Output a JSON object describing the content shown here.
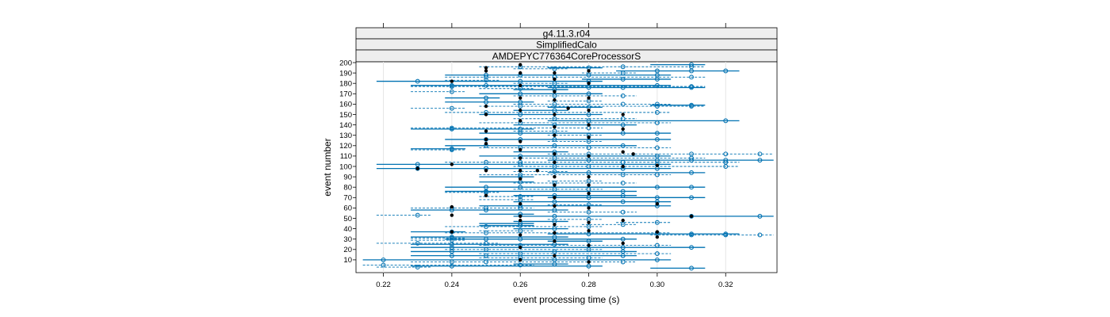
{
  "strips": [
    "g4.11.3.r04",
    "SimplifiedCalo",
    "AMDEPYC776364CoreProcessorS"
  ],
  "chart_data": {
    "type": "scatter",
    "title": "",
    "xlabel": "event processing time (s)",
    "ylabel": "event number",
    "xlim": [
      0.212,
      0.335
    ],
    "ylim": [
      0,
      200
    ],
    "x_ticks": [
      0.22,
      0.24,
      0.26,
      0.28,
      0.3,
      0.32
    ],
    "x_tick_labels": [
      "0.22",
      "0.24",
      "0.26",
      "0.28",
      "0.30",
      "0.32"
    ],
    "y_ticks": [
      10,
      20,
      30,
      40,
      50,
      60,
      70,
      80,
      90,
      100,
      110,
      120,
      130,
      140,
      150,
      160,
      170,
      180,
      190,
      200
    ],
    "y_tick_labels": [
      "10",
      "20",
      "30",
      "40",
      "50",
      "60",
      "70",
      "80",
      "90",
      "100",
      "110",
      "120",
      "130",
      "140",
      "150",
      "160",
      "170",
      "180",
      "190",
      "200"
    ],
    "grid": "vertical",
    "colors": {
      "line": "#0072b2",
      "median": "#000000",
      "grid": "#e6e6e6"
    },
    "series": [
      {
        "name": "",
        "marker": "open-circle",
        "points": [
          [
            0.22,
            10
          ],
          [
            0.22,
            5
          ],
          [
            0.23,
            3
          ],
          [
            0.23,
            26
          ],
          [
            0.23,
            53
          ],
          [
            0.23,
            102
          ],
          [
            0.23,
            98
          ],
          [
            0.23,
            182
          ],
          [
            0.24,
            4
          ],
          [
            0.24,
            8
          ],
          [
            0.24,
            14
          ],
          [
            0.24,
            18
          ],
          [
            0.24,
            22
          ],
          [
            0.24,
            25
          ],
          [
            0.24,
            29
          ],
          [
            0.24,
            31
          ],
          [
            0.24,
            32
          ],
          [
            0.24,
            37
          ],
          [
            0.24,
            58
          ],
          [
            0.24,
            60
          ],
          [
            0.24,
            116
          ],
          [
            0.24,
            117
          ],
          [
            0.24,
            136
          ],
          [
            0.24,
            137
          ],
          [
            0.24,
            156
          ],
          [
            0.24,
            172
          ],
          [
            0.24,
            177
          ],
          [
            0.24,
            178
          ],
          [
            0.25,
            8
          ],
          [
            0.25,
            14
          ],
          [
            0.25,
            20
          ],
          [
            0.25,
            26
          ],
          [
            0.25,
            30
          ],
          [
            0.25,
            36
          ],
          [
            0.25,
            42
          ],
          [
            0.25,
            58
          ],
          [
            0.25,
            60
          ],
          [
            0.25,
            75
          ],
          [
            0.25,
            76
          ],
          [
            0.25,
            80
          ],
          [
            0.25,
            98
          ],
          [
            0.25,
            104
          ],
          [
            0.25,
            120
          ],
          [
            0.25,
            126
          ],
          [
            0.25,
            152
          ],
          [
            0.25,
            162
          ],
          [
            0.25,
            166
          ],
          [
            0.25,
            178
          ],
          [
            0.25,
            183
          ],
          [
            0.25,
            186
          ],
          [
            0.25,
            188
          ],
          [
            0.26,
            5
          ],
          [
            0.26,
            12
          ],
          [
            0.26,
            16
          ],
          [
            0.26,
            24
          ],
          [
            0.26,
            30
          ],
          [
            0.26,
            38
          ],
          [
            0.26,
            43
          ],
          [
            0.26,
            45
          ],
          [
            0.26,
            54
          ],
          [
            0.26,
            60
          ],
          [
            0.26,
            62
          ],
          [
            0.26,
            68
          ],
          [
            0.26,
            71
          ],
          [
            0.26,
            80
          ],
          [
            0.26,
            85
          ],
          [
            0.26,
            90
          ],
          [
            0.26,
            92
          ],
          [
            0.26,
            102
          ],
          [
            0.26,
            104
          ],
          [
            0.26,
            110
          ],
          [
            0.26,
            118
          ],
          [
            0.26,
            126
          ],
          [
            0.26,
            132
          ],
          [
            0.26,
            136
          ],
          [
            0.26,
            142
          ],
          [
            0.26,
            150
          ],
          [
            0.26,
            158
          ],
          [
            0.26,
            162
          ],
          [
            0.26,
            170
          ],
          [
            0.26,
            175
          ],
          [
            0.26,
            182
          ],
          [
            0.26,
            188
          ],
          [
            0.26,
            196
          ],
          [
            0.27,
            6
          ],
          [
            0.27,
            10
          ],
          [
            0.27,
            18
          ],
          [
            0.27,
            25
          ],
          [
            0.27,
            32
          ],
          [
            0.27,
            40
          ],
          [
            0.27,
            47
          ],
          [
            0.27,
            52
          ],
          [
            0.27,
            58
          ],
          [
            0.27,
            66
          ],
          [
            0.27,
            72
          ],
          [
            0.27,
            78
          ],
          [
            0.27,
            84
          ],
          [
            0.27,
            95
          ],
          [
            0.27,
            100
          ],
          [
            0.27,
            108
          ],
          [
            0.27,
            114
          ],
          [
            0.27,
            120
          ],
          [
            0.27,
            126
          ],
          [
            0.27,
            134
          ],
          [
            0.27,
            140
          ],
          [
            0.27,
            146
          ],
          [
            0.27,
            154
          ],
          [
            0.27,
            160
          ],
          [
            0.27,
            168
          ],
          [
            0.27,
            174
          ],
          [
            0.27,
            180
          ],
          [
            0.27,
            186
          ],
          [
            0.27,
            194
          ],
          [
            0.28,
            4
          ],
          [
            0.28,
            12
          ],
          [
            0.28,
            20
          ],
          [
            0.28,
            28
          ],
          [
            0.28,
            35
          ],
          [
            0.28,
            42
          ],
          [
            0.28,
            49
          ],
          [
            0.28,
            56
          ],
          [
            0.28,
            63
          ],
          [
            0.28,
            70
          ],
          [
            0.28,
            78
          ],
          [
            0.28,
            86
          ],
          [
            0.28,
            94
          ],
          [
            0.28,
            100
          ],
          [
            0.28,
            106
          ],
          [
            0.28,
            112
          ],
          [
            0.28,
            118
          ],
          [
            0.28,
            124
          ],
          [
            0.28,
            130
          ],
          [
            0.28,
            137
          ],
          [
            0.28,
            144
          ],
          [
            0.28,
            150
          ],
          [
            0.28,
            157
          ],
          [
            0.28,
            163
          ],
          [
            0.28,
            170
          ],
          [
            0.28,
            176
          ],
          [
            0.28,
            182
          ],
          [
            0.28,
            188
          ],
          [
            0.28,
            195
          ],
          [
            0.29,
            8
          ],
          [
            0.29,
            14
          ],
          [
            0.29,
            18
          ],
          [
            0.29,
            22
          ],
          [
            0.29,
            30
          ],
          [
            0.29,
            44
          ],
          [
            0.29,
            56
          ],
          [
            0.29,
            66
          ],
          [
            0.29,
            72
          ],
          [
            0.29,
            76
          ],
          [
            0.29,
            84
          ],
          [
            0.29,
            92
          ],
          [
            0.29,
            98
          ],
          [
            0.29,
            104
          ],
          [
            0.29,
            120
          ],
          [
            0.29,
            132
          ],
          [
            0.29,
            140
          ],
          [
            0.29,
            146
          ],
          [
            0.29,
            160
          ],
          [
            0.29,
            168
          ],
          [
            0.29,
            176
          ],
          [
            0.29,
            184
          ],
          [
            0.29,
            190
          ],
          [
            0.29,
            196
          ],
          [
            0.3,
            10
          ],
          [
            0.3,
            16
          ],
          [
            0.3,
            24
          ],
          [
            0.3,
            36
          ],
          [
            0.3,
            46
          ],
          [
            0.3,
            62
          ],
          [
            0.3,
            66
          ],
          [
            0.3,
            70
          ],
          [
            0.3,
            80
          ],
          [
            0.3,
            92
          ],
          [
            0.3,
            98
          ],
          [
            0.3,
            102
          ],
          [
            0.3,
            106
          ],
          [
            0.3,
            110
          ],
          [
            0.3,
            118
          ],
          [
            0.3,
            126
          ],
          [
            0.3,
            132
          ],
          [
            0.3,
            142
          ],
          [
            0.3,
            152
          ],
          [
            0.3,
            158
          ],
          [
            0.3,
            160
          ],
          [
            0.3,
            178
          ],
          [
            0.3,
            184
          ],
          [
            0.3,
            188
          ],
          [
            0.3,
            192
          ],
          [
            0.31,
            2
          ],
          [
            0.31,
            22
          ],
          [
            0.31,
            34
          ],
          [
            0.31,
            35
          ],
          [
            0.31,
            52
          ],
          [
            0.31,
            70
          ],
          [
            0.31,
            80
          ],
          [
            0.31,
            94
          ],
          [
            0.31,
            106
          ],
          [
            0.31,
            108
          ],
          [
            0.31,
            112
          ],
          [
            0.31,
            158
          ],
          [
            0.31,
            159
          ],
          [
            0.31,
            176
          ],
          [
            0.31,
            177
          ],
          [
            0.31,
            186
          ],
          [
            0.31,
            192
          ],
          [
            0.31,
            196
          ],
          [
            0.31,
            198
          ],
          [
            0.32,
            34
          ],
          [
            0.32,
            35
          ],
          [
            0.32,
            100
          ],
          [
            0.32,
            104
          ],
          [
            0.32,
            106
          ],
          [
            0.32,
            112
          ],
          [
            0.32,
            144
          ],
          [
            0.32,
            192
          ],
          [
            0.33,
            34
          ],
          [
            0.33,
            52
          ],
          [
            0.33,
            106
          ],
          [
            0.33,
            112
          ]
        ]
      },
      {
        "name": "",
        "marker": "filled-dot",
        "points": [
          [
            0.23,
            98
          ],
          [
            0.24,
            37
          ],
          [
            0.24,
            53
          ],
          [
            0.24,
            61
          ],
          [
            0.24,
            102
          ],
          [
            0.24,
            182
          ],
          [
            0.25,
            72
          ],
          [
            0.25,
            96
          ],
          [
            0.25,
            122
          ],
          [
            0.25,
            126
          ],
          [
            0.25,
            134
          ],
          [
            0.25,
            150
          ],
          [
            0.25,
            158
          ],
          [
            0.25,
            192
          ],
          [
            0.25,
            195
          ],
          [
            0.26,
            10
          ],
          [
            0.26,
            22
          ],
          [
            0.26,
            34
          ],
          [
            0.26,
            48
          ],
          [
            0.26,
            52
          ],
          [
            0.26,
            64
          ],
          [
            0.26,
            88
          ],
          [
            0.26,
            96
          ],
          [
            0.26,
            108
          ],
          [
            0.26,
            116
          ],
          [
            0.26,
            124
          ],
          [
            0.26,
            144
          ],
          [
            0.26,
            154
          ],
          [
            0.26,
            166
          ],
          [
            0.26,
            178
          ],
          [
            0.26,
            190
          ],
          [
            0.26,
            198
          ],
          [
            0.265,
            96
          ],
          [
            0.27,
            14
          ],
          [
            0.27,
            28
          ],
          [
            0.27,
            36
          ],
          [
            0.27,
            44
          ],
          [
            0.27,
            62
          ],
          [
            0.27,
            70
          ],
          [
            0.27,
            82
          ],
          [
            0.27,
            90
          ],
          [
            0.27,
            104
          ],
          [
            0.27,
            112
          ],
          [
            0.27,
            130
          ],
          [
            0.27,
            138
          ],
          [
            0.27,
            150
          ],
          [
            0.27,
            164
          ],
          [
            0.27,
            172
          ],
          [
            0.27,
            184
          ],
          [
            0.27,
            190
          ],
          [
            0.274,
            156
          ],
          [
            0.28,
            8
          ],
          [
            0.28,
            24
          ],
          [
            0.28,
            38
          ],
          [
            0.28,
            46
          ],
          [
            0.28,
            60
          ],
          [
            0.28,
            74
          ],
          [
            0.28,
            82
          ],
          [
            0.28,
            90
          ],
          [
            0.28,
            110
          ],
          [
            0.28,
            128
          ],
          [
            0.28,
            140
          ],
          [
            0.28,
            154
          ],
          [
            0.28,
            166
          ],
          [
            0.28,
            180
          ],
          [
            0.28,
            192
          ],
          [
            0.29,
            26
          ],
          [
            0.29,
            48
          ],
          [
            0.29,
            100
          ],
          [
            0.29,
            114
          ],
          [
            0.29,
            136
          ],
          [
            0.29,
            150
          ],
          [
            0.293,
            112
          ],
          [
            0.3,
            32
          ],
          [
            0.3,
            37
          ],
          [
            0.3,
            64
          ],
          [
            0.3,
            101
          ],
          [
            0.31,
            52
          ]
        ]
      }
    ]
  }
}
